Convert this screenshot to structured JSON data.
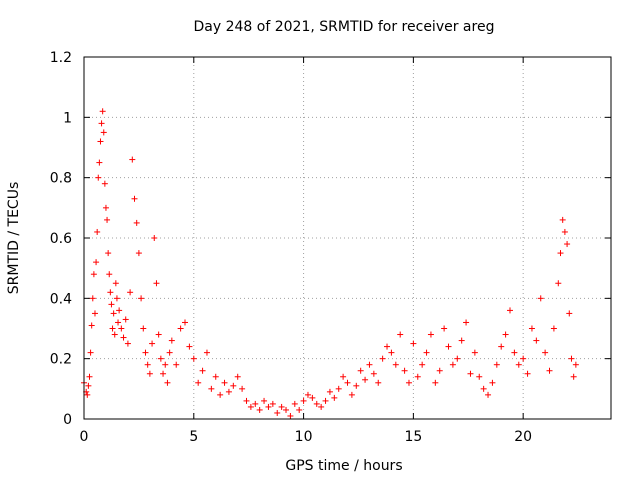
{
  "chart_data": {
    "type": "scatter",
    "title": "Day 248 of 2021, SRMTID for receiver areg",
    "xlabel": "GPS time / hours",
    "ylabel": "SRMTID / TECUs",
    "xlim": [
      0,
      24
    ],
    "ylim": [
      0,
      1.2
    ],
    "xticks": [
      0,
      5,
      10,
      15,
      20
    ],
    "yticks": [
      0,
      0.2,
      0.4,
      0.6,
      0.8,
      1,
      1.2
    ],
    "xtick_labels": [
      "0",
      "5",
      "10",
      "15",
      "20"
    ],
    "ytick_labels": [
      "0",
      "0.2",
      "0.4",
      "0.6",
      "0.8",
      "1",
      "1.2"
    ],
    "grid": true,
    "marker": "+",
    "color": "#ff0000",
    "series": [
      {
        "name": "SRMTID",
        "points": [
          [
            0.0,
            0.12
          ],
          [
            0.1,
            0.09
          ],
          [
            0.15,
            0.08
          ],
          [
            0.2,
            0.11
          ],
          [
            0.25,
            0.14
          ],
          [
            0.3,
            0.22
          ],
          [
            0.35,
            0.31
          ],
          [
            0.4,
            0.4
          ],
          [
            0.45,
            0.48
          ],
          [
            0.5,
            0.35
          ],
          [
            0.55,
            0.52
          ],
          [
            0.6,
            0.62
          ],
          [
            0.65,
            0.8
          ],
          [
            0.7,
            0.85
          ],
          [
            0.75,
            0.92
          ],
          [
            0.8,
            0.98
          ],
          [
            0.85,
            1.02
          ],
          [
            0.9,
            0.95
          ],
          [
            0.95,
            0.78
          ],
          [
            1.0,
            0.7
          ],
          [
            1.05,
            0.66
          ],
          [
            1.1,
            0.55
          ],
          [
            1.15,
            0.48
          ],
          [
            1.2,
            0.42
          ],
          [
            1.25,
            0.38
          ],
          [
            1.3,
            0.3
          ],
          [
            1.35,
            0.35
          ],
          [
            1.4,
            0.28
          ],
          [
            1.45,
            0.45
          ],
          [
            1.5,
            0.4
          ],
          [
            1.55,
            0.32
          ],
          [
            1.6,
            0.36
          ],
          [
            1.7,
            0.3
          ],
          [
            1.8,
            0.27
          ],
          [
            1.9,
            0.33
          ],
          [
            2.0,
            0.25
          ],
          [
            2.1,
            0.42
          ],
          [
            2.2,
            0.86
          ],
          [
            2.3,
            0.73
          ],
          [
            2.4,
            0.65
          ],
          [
            2.5,
            0.55
          ],
          [
            2.6,
            0.4
          ],
          [
            2.7,
            0.3
          ],
          [
            2.8,
            0.22
          ],
          [
            2.9,
            0.18
          ],
          [
            3.0,
            0.15
          ],
          [
            3.1,
            0.25
          ],
          [
            3.2,
            0.6
          ],
          [
            3.3,
            0.45
          ],
          [
            3.4,
            0.28
          ],
          [
            3.5,
            0.2
          ],
          [
            3.6,
            0.15
          ],
          [
            3.7,
            0.18
          ],
          [
            3.8,
            0.12
          ],
          [
            3.9,
            0.22
          ],
          [
            4.0,
            0.26
          ],
          [
            4.2,
            0.18
          ],
          [
            4.4,
            0.3
          ],
          [
            4.6,
            0.32
          ],
          [
            4.8,
            0.24
          ],
          [
            5.0,
            0.2
          ],
          [
            5.2,
            0.12
          ],
          [
            5.4,
            0.16
          ],
          [
            5.6,
            0.22
          ],
          [
            5.8,
            0.1
          ],
          [
            6.0,
            0.14
          ],
          [
            6.2,
            0.08
          ],
          [
            6.4,
            0.12
          ],
          [
            6.6,
            0.09
          ],
          [
            6.8,
            0.11
          ],
          [
            7.0,
            0.14
          ],
          [
            7.2,
            0.1
          ],
          [
            7.4,
            0.06
          ],
          [
            7.6,
            0.04
          ],
          [
            7.8,
            0.05
          ],
          [
            8.0,
            0.03
          ],
          [
            8.2,
            0.06
          ],
          [
            8.4,
            0.04
          ],
          [
            8.6,
            0.05
          ],
          [
            8.8,
            0.02
          ],
          [
            9.0,
            0.04
          ],
          [
            9.2,
            0.03
          ],
          [
            9.4,
            0.01
          ],
          [
            9.6,
            0.05
          ],
          [
            9.8,
            0.03
          ],
          [
            10.0,
            0.06
          ],
          [
            10.2,
            0.08
          ],
          [
            10.4,
            0.07
          ],
          [
            10.6,
            0.05
          ],
          [
            10.8,
            0.04
          ],
          [
            11.0,
            0.06
          ],
          [
            11.2,
            0.09
          ],
          [
            11.4,
            0.07
          ],
          [
            11.6,
            0.1
          ],
          [
            11.8,
            0.14
          ],
          [
            12.0,
            0.12
          ],
          [
            12.2,
            0.08
          ],
          [
            12.4,
            0.11
          ],
          [
            12.6,
            0.16
          ],
          [
            12.8,
            0.13
          ],
          [
            13.0,
            0.18
          ],
          [
            13.2,
            0.15
          ],
          [
            13.4,
            0.12
          ],
          [
            13.6,
            0.2
          ],
          [
            13.8,
            0.24
          ],
          [
            14.0,
            0.22
          ],
          [
            14.2,
            0.18
          ],
          [
            14.4,
            0.28
          ],
          [
            14.6,
            0.16
          ],
          [
            14.8,
            0.12
          ],
          [
            15.0,
            0.25
          ],
          [
            15.2,
            0.14
          ],
          [
            15.4,
            0.18
          ],
          [
            15.6,
            0.22
          ],
          [
            15.8,
            0.28
          ],
          [
            16.0,
            0.12
          ],
          [
            16.2,
            0.16
          ],
          [
            16.4,
            0.3
          ],
          [
            16.6,
            0.24
          ],
          [
            16.8,
            0.18
          ],
          [
            17.0,
            0.2
          ],
          [
            17.2,
            0.26
          ],
          [
            17.4,
            0.32
          ],
          [
            17.6,
            0.15
          ],
          [
            17.8,
            0.22
          ],
          [
            18.0,
            0.14
          ],
          [
            18.2,
            0.1
          ],
          [
            18.4,
            0.08
          ],
          [
            18.6,
            0.12
          ],
          [
            18.8,
            0.18
          ],
          [
            19.0,
            0.24
          ],
          [
            19.2,
            0.28
          ],
          [
            19.4,
            0.36
          ],
          [
            19.6,
            0.22
          ],
          [
            19.8,
            0.18
          ],
          [
            20.0,
            0.2
          ],
          [
            20.2,
            0.15
          ],
          [
            20.4,
            0.3
          ],
          [
            20.6,
            0.26
          ],
          [
            20.8,
            0.4
          ],
          [
            21.0,
            0.22
          ],
          [
            21.2,
            0.16
          ],
          [
            21.4,
            0.3
          ],
          [
            21.6,
            0.45
          ],
          [
            21.7,
            0.55
          ],
          [
            21.8,
            0.66
          ],
          [
            21.9,
            0.62
          ],
          [
            22.0,
            0.58
          ],
          [
            22.1,
            0.35
          ],
          [
            22.2,
            0.2
          ],
          [
            22.3,
            0.14
          ],
          [
            22.4,
            0.18
          ]
        ]
      }
    ]
  }
}
